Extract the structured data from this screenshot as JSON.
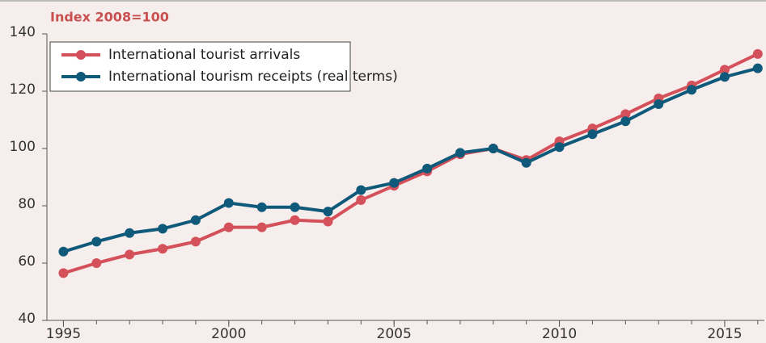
{
  "chart_data": {
    "type": "line",
    "title": "Index 2008=100",
    "x": [
      1995,
      1996,
      1997,
      1998,
      1999,
      2000,
      2001,
      2002,
      2003,
      2004,
      2005,
      2006,
      2007,
      2008,
      2009,
      2010,
      2011,
      2012,
      2013,
      2014,
      2015,
      2016
    ],
    "series": [
      {
        "name": "International tourist arrivals",
        "color": "#d4505a",
        "values": [
          56.5,
          60,
          63,
          65,
          67.5,
          72.5,
          72.5,
          75,
          74.5,
          82,
          87,
          92,
          98,
          100,
          96,
          102.5,
          107,
          112,
          117.5,
          122,
          127.5,
          133
        ]
      },
      {
        "name": "International tourism receipts (real terms)",
        "color": "#0f5a7a",
        "values": [
          64,
          67.5,
          70.5,
          72,
          75,
          81,
          79.5,
          79.5,
          78,
          85.5,
          88,
          93,
          98.5,
          100,
          95,
          100.5,
          105,
          109.5,
          115.5,
          120.5,
          125,
          128
        ]
      }
    ],
    "xlim": [
      1994.5,
      2016.2
    ],
    "xticks": [
      1995,
      2000,
      2005,
      2010,
      2015
    ],
    "xminorticks": [
      1995,
      1996,
      1997,
      1998,
      1999,
      2000,
      2001,
      2002,
      2003,
      2004,
      2005,
      2006,
      2007,
      2008,
      2009,
      2010,
      2011,
      2012,
      2013,
      2014,
      2015,
      2016
    ],
    "ylim": [
      40,
      140
    ],
    "yticks": [
      40,
      60,
      80,
      100,
      120,
      140
    ],
    "grid": false,
    "legend": "upper left"
  }
}
